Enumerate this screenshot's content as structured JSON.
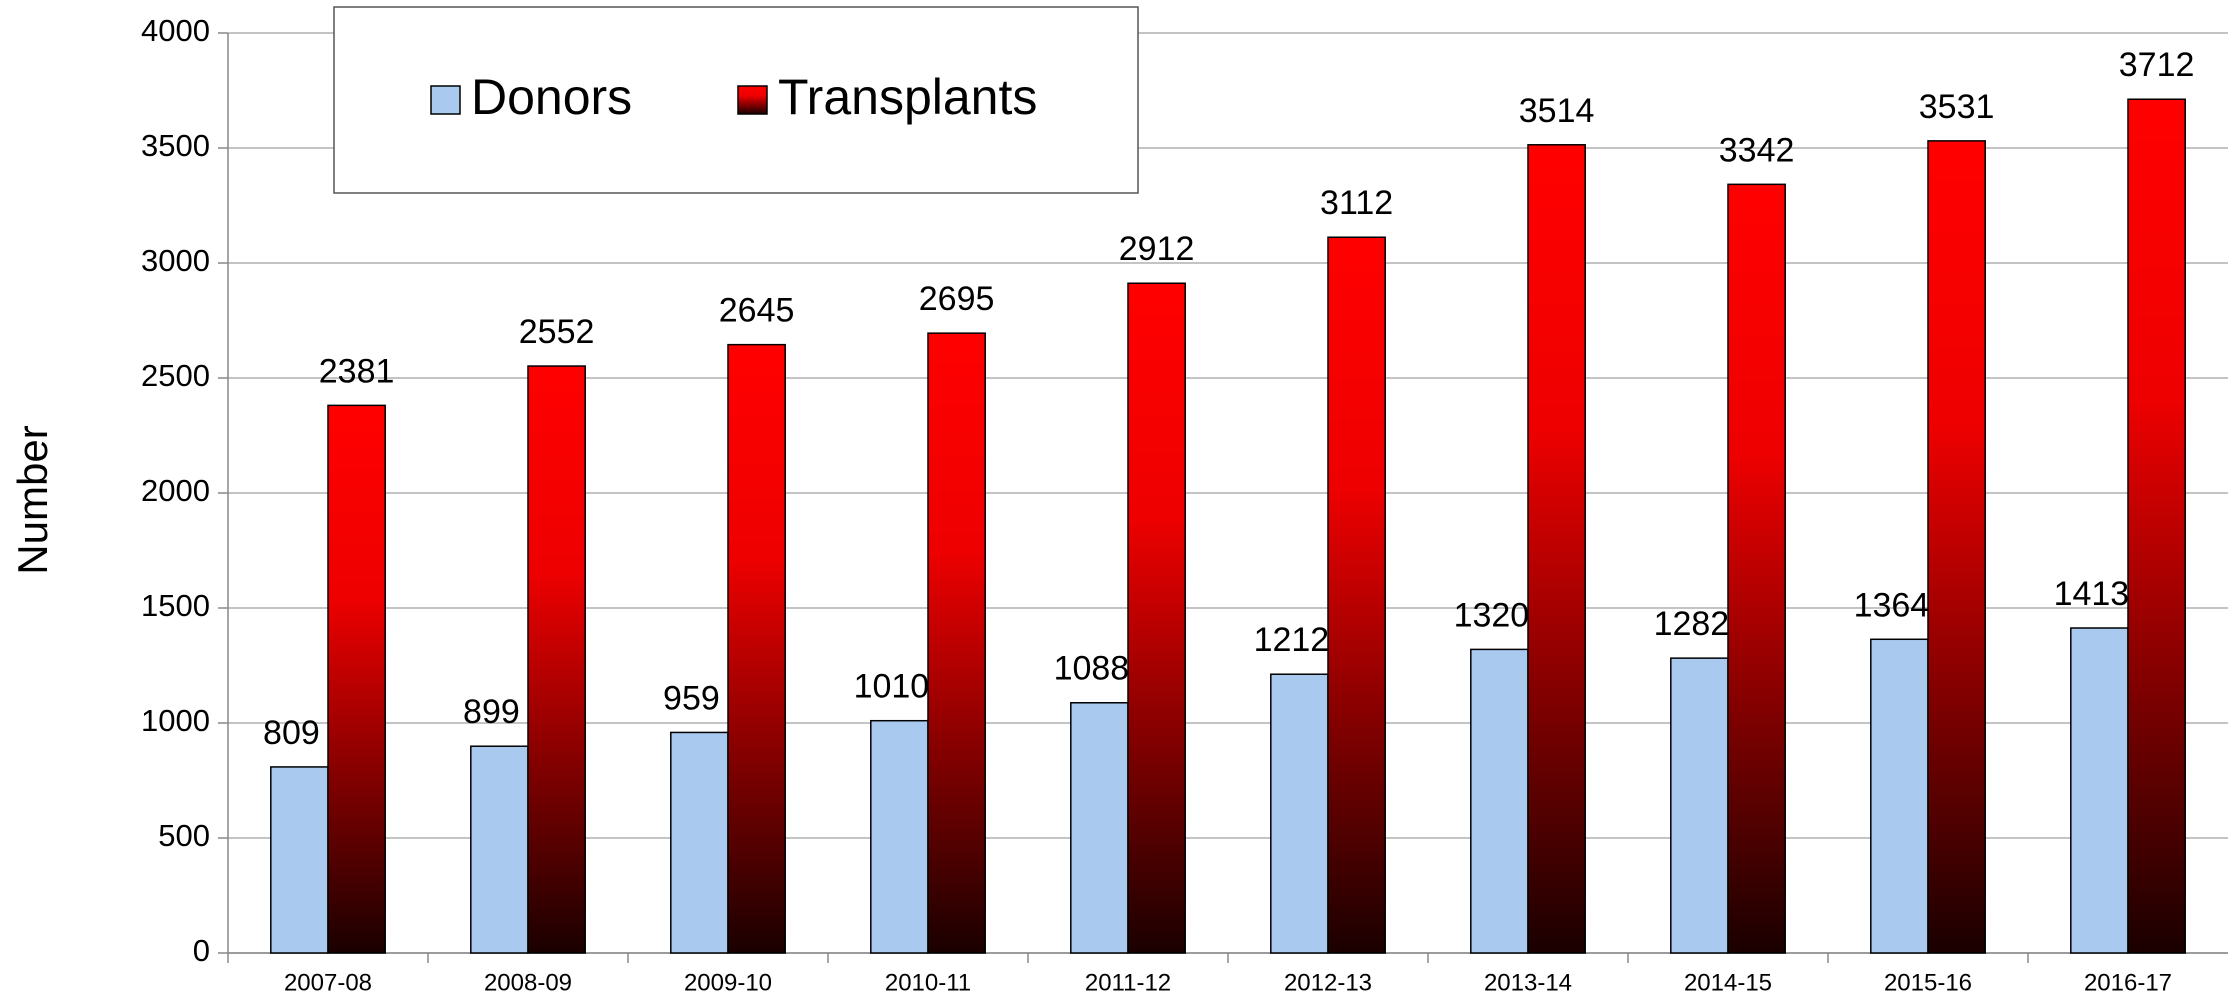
{
  "chart_data": {
    "type": "bar",
    "y_label": "Number",
    "categories": [
      "2007-08",
      "2008-09",
      "2009-10",
      "2010-11",
      "2011-12",
      "2012-13",
      "2013-14",
      "2014-15",
      "2015-16",
      "2016-17"
    ],
    "series": [
      {
        "name": "Donors",
        "color": "#a9c9ef",
        "values": [
          809,
          899,
          959,
          1010,
          1088,
          1212,
          1320,
          1282,
          1364,
          1413
        ]
      },
      {
        "name": "Transplants",
        "color": "#ff0000",
        "values": [
          2381,
          2552,
          2645,
          2695,
          2912,
          3112,
          3514,
          3342,
          3531,
          3712
        ]
      }
    ],
    "ylim": [
      0,
      4000
    ],
    "yticks": [
      0,
      500,
      1000,
      1500,
      2000,
      2500,
      3000,
      3500,
      4000
    ],
    "grid": true,
    "legend": "top-left"
  }
}
